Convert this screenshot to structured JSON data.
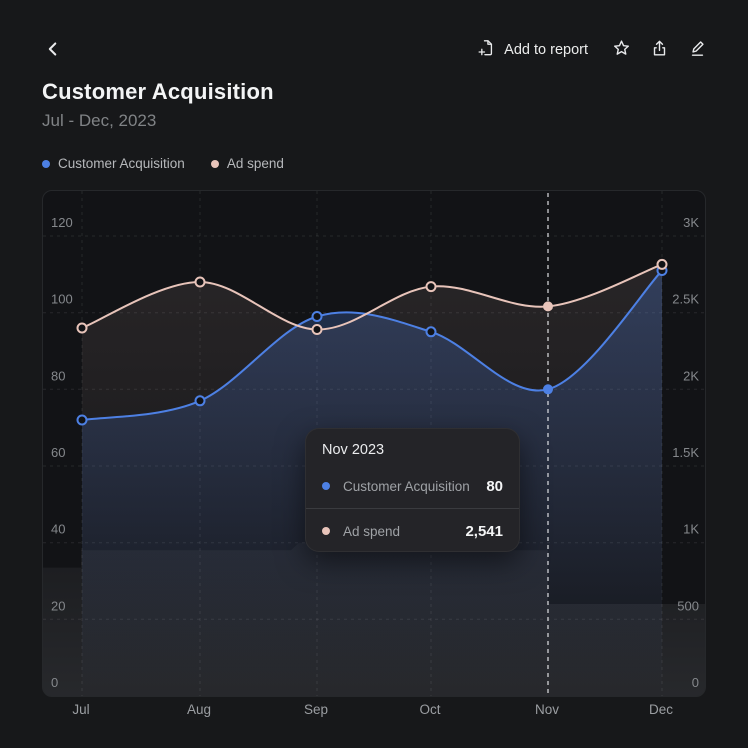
{
  "header": {
    "back_icon": "chevron-left",
    "add_to_report_label": "Add to report",
    "actions": [
      "favorite",
      "share",
      "edit"
    ]
  },
  "title": "Customer Acquisition",
  "subtitle": "Jul - Dec, 2023",
  "colors": {
    "primary_series": "#4d80e4",
    "secondary_series": "#e8c4ba",
    "background": "#17181a",
    "chart_background": "#121316"
  },
  "legend": [
    {
      "label": "Customer Acquisition",
      "color": "#4d80e4"
    },
    {
      "label": "Ad spend",
      "color": "#e8c4ba"
    }
  ],
  "tooltip": {
    "title": "Nov 2023",
    "rows": [
      {
        "label": "Customer Acquisition",
        "value": "80",
        "color": "#4d80e4"
      },
      {
        "label": "Ad spend",
        "value": "2,541",
        "color": "#e8c4ba"
      }
    ]
  },
  "chart_data": {
    "type": "line",
    "categories": [
      "Jul",
      "Aug",
      "Sep",
      "Oct",
      "Nov",
      "Dec"
    ],
    "series": [
      {
        "name": "Customer Acquisition",
        "axis": "left",
        "color": "#4d80e4",
        "values": [
          72,
          77,
          99,
          95,
          80,
          111
        ]
      },
      {
        "name": "Ad spend",
        "axis": "right",
        "color": "#e8c4ba",
        "values": [
          2400,
          2700,
          2390,
          2670,
          2541,
          2815
        ]
      }
    ],
    "left_axis": {
      "min": 0,
      "max": 120,
      "ticks": [
        "0",
        "20",
        "40",
        "60",
        "80",
        "100",
        "120"
      ]
    },
    "right_axis": {
      "min": 0,
      "max": 3000,
      "ticks": [
        "0",
        "500",
        "1K",
        "1.5K",
        "2K",
        "2.5K",
        "3K"
      ]
    },
    "highlighted_category": "Nov",
    "highlight_index": 4,
    "grid": true,
    "legend_position": "top-left",
    "background_silhouette_steps": [
      [
        0,
        33.5
      ],
      [
        38,
        33.5
      ],
      [
        38,
        38
      ],
      [
        248,
        38
      ],
      [
        256,
        40
      ],
      [
        286,
        40
      ],
      [
        294,
        38
      ],
      [
        505,
        38
      ],
      [
        505,
        24
      ],
      [
        664,
        24
      ]
    ]
  }
}
